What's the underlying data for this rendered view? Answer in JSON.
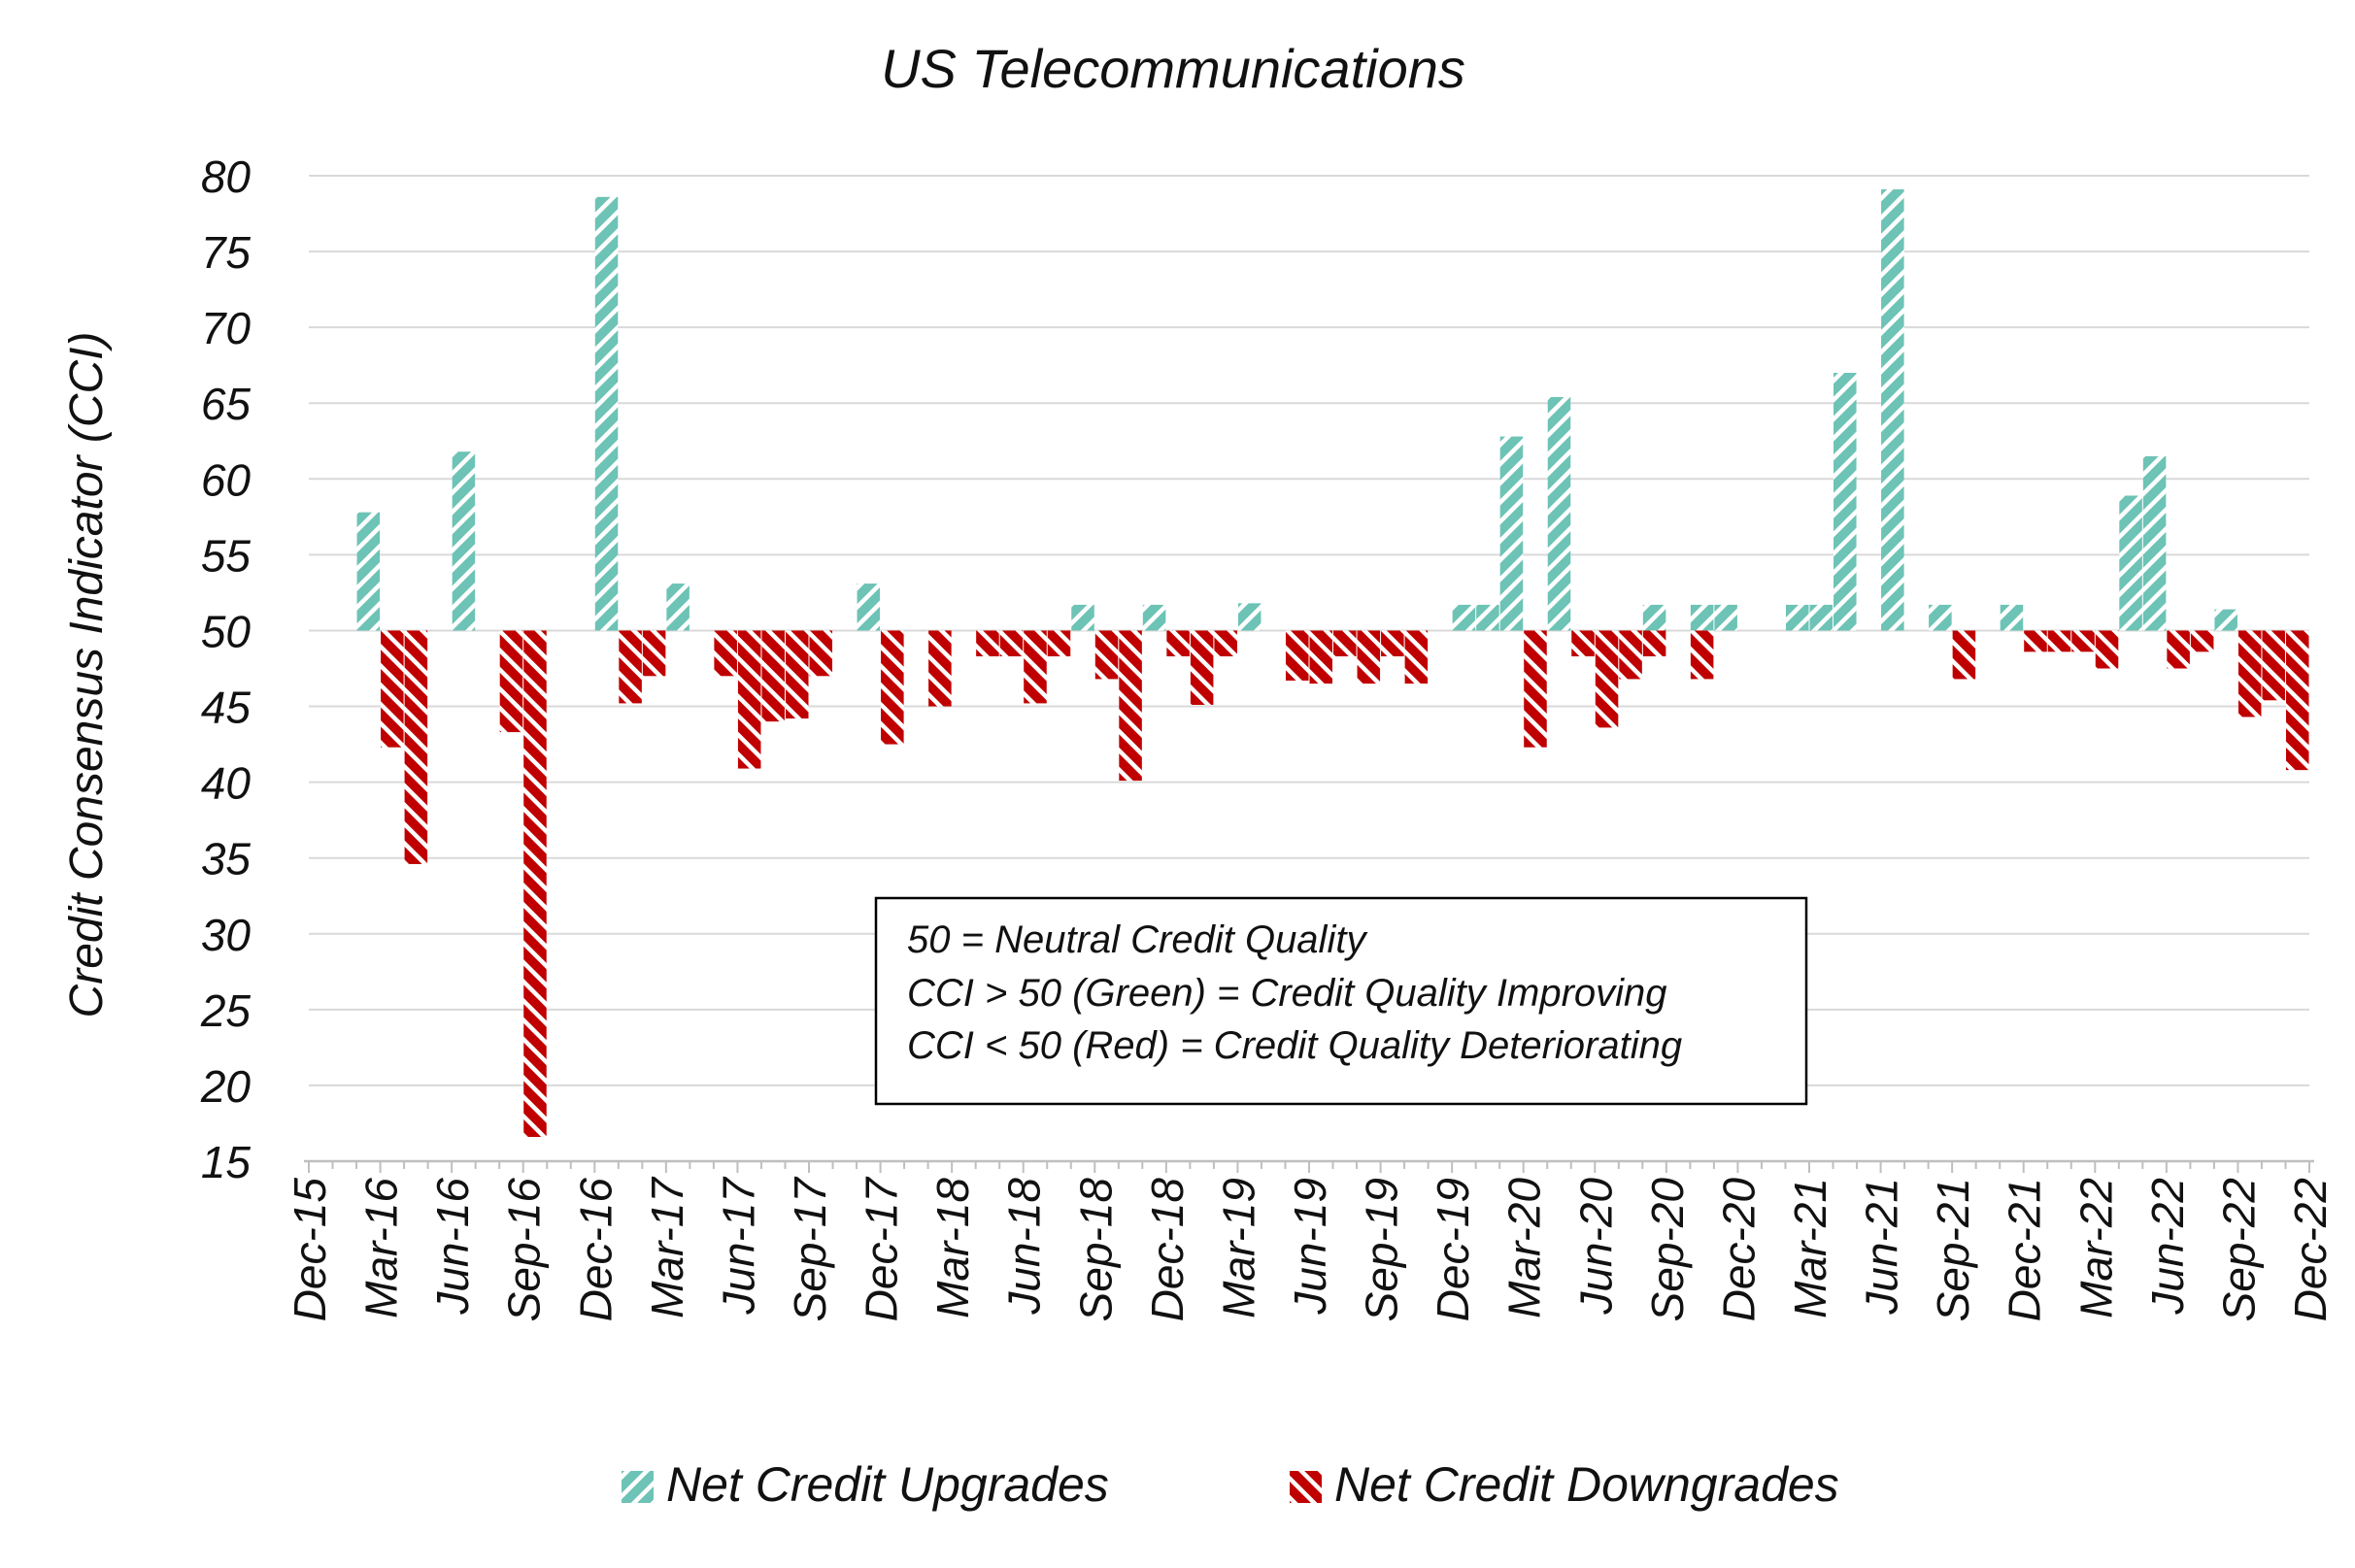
{
  "chart_data": {
    "type": "bar",
    "title": "US Telecommunications",
    "xlabel": "",
    "ylabel": "Credit Consensus Indicator (CCI)",
    "ylim": [
      15,
      80
    ],
    "yticks": [
      80,
      75,
      70,
      65,
      60,
      55,
      50,
      45,
      40,
      35,
      30,
      25,
      20,
      15
    ],
    "baseline": 50,
    "grid": true,
    "xtick_labels": [
      "Dec-15",
      "Mar-16",
      "Jun-16",
      "Sep-16",
      "Dec-16",
      "Mar-17",
      "Jun-17",
      "Sep-17",
      "Dec-17",
      "Mar-18",
      "Jun-18",
      "Sep-18",
      "Dec-18",
      "Mar-19",
      "Jun-19",
      "Sep-19",
      "Dec-19",
      "Mar-20",
      "Jun-20",
      "Sep-20",
      "Dec-20",
      "Mar-21",
      "Jun-21",
      "Sep-21",
      "Dec-21",
      "Mar-22",
      "Jun-22",
      "Sep-22",
      "Dec-22"
    ],
    "x_unit": "month",
    "legend_position": "bottom",
    "series": [
      {
        "name": "Net Credit Upgrades",
        "color": "#6dc3b5",
        "points": [
          {
            "x": "Feb-16",
            "y": 57.8
          },
          {
            "x": "Jun-16",
            "y": 61.8
          },
          {
            "x": "Dec-16",
            "y": 78.6
          },
          {
            "x": "Mar-17",
            "y": 53.1
          },
          {
            "x": "Nov-17",
            "y": 53.1
          },
          {
            "x": "Aug-18",
            "y": 51.7
          },
          {
            "x": "Nov-18",
            "y": 51.7
          },
          {
            "x": "Mar-19",
            "y": 51.8
          },
          {
            "x": "Dec-19",
            "y": 51.7
          },
          {
            "x": "Jan-20",
            "y": 51.7
          },
          {
            "x": "Feb-20",
            "y": 62.8
          },
          {
            "x": "Apr-20",
            "y": 65.4
          },
          {
            "x": "Aug-20",
            "y": 51.7
          },
          {
            "x": "Oct-20",
            "y": 51.7
          },
          {
            "x": "Nov-20",
            "y": 51.7
          },
          {
            "x": "Feb-21",
            "y": 51.7
          },
          {
            "x": "Mar-21",
            "y": 51.7
          },
          {
            "x": "Apr-21",
            "y": 67.0
          },
          {
            "x": "Jun-21",
            "y": 79.1
          },
          {
            "x": "Aug-21",
            "y": 51.7
          },
          {
            "x": "Nov-21",
            "y": 51.7
          },
          {
            "x": "Apr-22",
            "y": 58.9
          },
          {
            "x": "May-22",
            "y": 61.5
          },
          {
            "x": "Aug-22",
            "y": 51.4
          }
        ]
      },
      {
        "name": "Net Credit Downgrades",
        "color": "#c00000",
        "points": [
          {
            "x": "Mar-16",
            "y": 42.3
          },
          {
            "x": "Apr-16",
            "y": 34.6
          },
          {
            "x": "Aug-16",
            "y": 43.3
          },
          {
            "x": "Sep-16",
            "y": 16.6
          },
          {
            "x": "Jan-17",
            "y": 45.2
          },
          {
            "x": "Feb-17",
            "y": 47.0
          },
          {
            "x": "May-17",
            "y": 47.0
          },
          {
            "x": "Jun-17",
            "y": 40.9
          },
          {
            "x": "Jul-17",
            "y": 44.0
          },
          {
            "x": "Aug-17",
            "y": 44.2
          },
          {
            "x": "Sep-17",
            "y": 47.0
          },
          {
            "x": "Dec-17",
            "y": 42.5
          },
          {
            "x": "Feb-18",
            "y": 45.0
          },
          {
            "x": "Apr-18",
            "y": 48.3
          },
          {
            "x": "May-18",
            "y": 48.3
          },
          {
            "x": "Jun-18",
            "y": 45.2
          },
          {
            "x": "Jul-18",
            "y": 48.3
          },
          {
            "x": "Sep-18",
            "y": 46.8
          },
          {
            "x": "Oct-18",
            "y": 40.1
          },
          {
            "x": "Dec-18",
            "y": 48.3
          },
          {
            "x": "Jan-19",
            "y": 45.1
          },
          {
            "x": "Feb-19",
            "y": 48.3
          },
          {
            "x": "May-19",
            "y": 46.7
          },
          {
            "x": "Jun-19",
            "y": 46.5
          },
          {
            "x": "Jul-19",
            "y": 48.3
          },
          {
            "x": "Aug-19",
            "y": 46.5
          },
          {
            "x": "Sep-19",
            "y": 48.3
          },
          {
            "x": "Oct-19",
            "y": 46.5
          },
          {
            "x": "Mar-20",
            "y": 42.3
          },
          {
            "x": "May-20",
            "y": 48.3
          },
          {
            "x": "Jun-20",
            "y": 43.6
          },
          {
            "x": "Jul-20",
            "y": 46.8
          },
          {
            "x": "Aug-20",
            "y": 48.3
          },
          {
            "x": "Oct-20",
            "y": 46.8
          },
          {
            "x": "Sep-21",
            "y": 46.8
          },
          {
            "x": "Dec-21",
            "y": 48.6
          },
          {
            "x": "Jan-22",
            "y": 48.6
          },
          {
            "x": "Feb-22",
            "y": 48.6
          },
          {
            "x": "Mar-22",
            "y": 47.5
          },
          {
            "x": "Jun-22",
            "y": 47.5
          },
          {
            "x": "Jul-22",
            "y": 48.6
          },
          {
            "x": "Sep-22",
            "y": 44.3
          },
          {
            "x": "Oct-22",
            "y": 45.4
          },
          {
            "x": "Nov-22",
            "y": 40.8
          }
        ]
      }
    ],
    "annotation_lines": [
      "50 = Neutral Credit Quality",
      "CCI > 50 (Green) = Credit Quality Improving",
      "CCI < 50 (Red) = Credit Quality Deteriorating"
    ]
  }
}
